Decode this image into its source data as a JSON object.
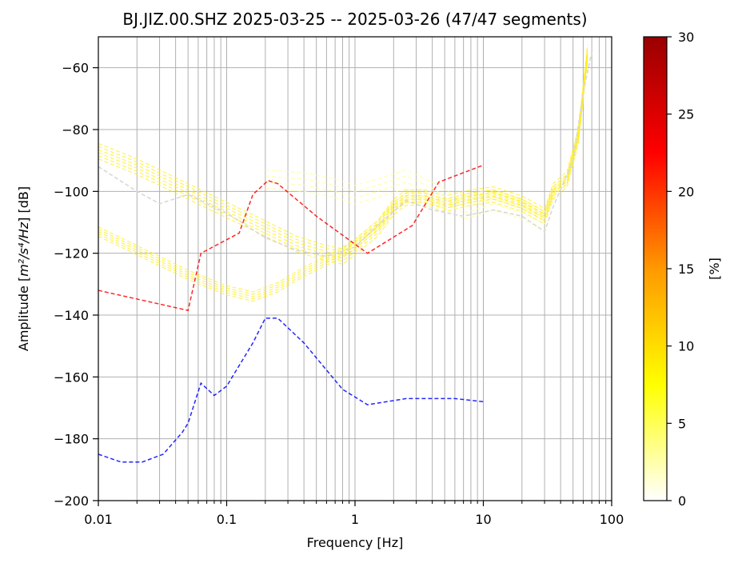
{
  "chart_data": {
    "type": "line",
    "title": "BJ.JIZ.00.SHZ   2025-03-25 -- 2025-03-26  (47/47 segments)",
    "xlabel": "Frequency [Hz]",
    "ylabel_main": "Amplitude [",
    "ylabel_units": "m²/s⁴/Hz",
    "ylabel_suffix": "] [dB]",
    "xscale": "log",
    "xlim": [
      0.01,
      100
    ],
    "ylim": [
      -200,
      -50
    ],
    "grid": true,
    "x_ticks": [
      {
        "value": 0.01,
        "label": "0.01"
      },
      {
        "value": 0.1,
        "label": "0.1"
      },
      {
        "value": 1,
        "label": "1"
      },
      {
        "value": 10,
        "label": "10"
      },
      {
        "value": 100,
        "label": "100"
      }
    ],
    "y_ticks": [
      {
        "value": -200,
        "label": "−200"
      },
      {
        "value": -180,
        "label": "−180"
      },
      {
        "value": -160,
        "label": "−160"
      },
      {
        "value": -140,
        "label": "−140"
      },
      {
        "value": -120,
        "label": "−120"
      },
      {
        "value": -100,
        "label": "−100"
      },
      {
        "value": -80,
        "label": "−80"
      },
      {
        "value": -60,
        "label": "−60"
      }
    ],
    "colorbar": {
      "label": "[%]",
      "range": [
        0,
        30
      ],
      "colors": [
        "#ffffff",
        "#ffff00",
        "#ff9900",
        "#ff0000",
        "#990000"
      ],
      "ticks": [
        {
          "value": 0,
          "label": "0"
        },
        {
          "value": 5,
          "label": "5"
        },
        {
          "value": 10,
          "label": "10"
        },
        {
          "value": 15,
          "label": "15"
        },
        {
          "value": 20,
          "label": "20"
        },
        {
          "value": 25,
          "label": "25"
        },
        {
          "value": 30,
          "label": "30"
        }
      ]
    },
    "reference_lines": [
      {
        "role": "high-noise-model",
        "color": "#ff0000",
        "x": [
          0.01,
          0.05,
          0.063,
          0.125,
          0.16,
          0.21,
          0.25,
          0.5,
          1.25,
          2.8,
          4.5,
          10
        ],
        "y": [
          -132,
          -138.5,
          -120,
          -113.5,
          -101,
          -96.5,
          -97.5,
          -108,
          -120,
          -111,
          -97,
          -91.5
        ]
      },
      {
        "role": "low-noise-model",
        "color": "#0000ff",
        "x": [
          0.01,
          0.015,
          0.022,
          0.032,
          0.045,
          0.05,
          0.063,
          0.08,
          0.1,
          0.16,
          0.2,
          0.25,
          0.4,
          0.8,
          1.25,
          2.5,
          6,
          10
        ],
        "y": [
          -185,
          -187.5,
          -187.5,
          -185,
          -178,
          -175,
          -162,
          -166,
          -163,
          -149,
          -141,
          -141,
          -149,
          -164,
          -169,
          -167,
          -167,
          -168
        ]
      }
    ],
    "psd_curves": [
      {
        "color": "#ffee22",
        "spread": 1.5,
        "count": 5,
        "x": [
          0.01,
          0.02,
          0.05,
          0.1,
          0.16,
          0.25,
          0.4,
          0.7,
          1,
          1.5,
          2,
          2.5,
          3.5,
          5,
          8,
          12,
          20,
          30,
          35,
          45,
          55,
          65
        ],
        "y": [
          -113,
          -119,
          -127,
          -132,
          -134,
          -131,
          -126,
          -121,
          -117,
          -111,
          -105,
          -102,
          -102,
          -104,
          -102,
          -101,
          -104,
          -108,
          -100,
          -96,
          -82,
          -55
        ]
      },
      {
        "color": "#ffee22",
        "spread": 2.5,
        "count": 6,
        "x": [
          0.01,
          0.02,
          0.05,
          0.1,
          0.2,
          0.35,
          0.6,
          0.8,
          1,
          1.5,
          2,
          2.5,
          3.5,
          5,
          8,
          12,
          20,
          30,
          35,
          45,
          55,
          65
        ],
        "y": [
          -87,
          -92,
          -100,
          -106,
          -112,
          -117,
          -120,
          -121,
          -118,
          -112,
          -105,
          -102,
          -102,
          -104,
          -102,
          -101,
          -104,
          -108,
          -100,
          -96,
          -82,
          -55
        ]
      },
      {
        "color": "#ffff99",
        "spread": 3,
        "count": 4,
        "x": [
          0.2,
          0.4,
          0.7,
          1,
          1.5,
          2.5,
          4,
          7,
          12,
          20,
          32
        ],
        "y": [
          -96,
          -97,
          -99,
          -101,
          -99,
          -96,
          -100,
          -106,
          -103,
          -106,
          -110
        ]
      },
      {
        "color": "#d8d8d8",
        "spread": 0,
        "count": 1,
        "x": [
          0.01,
          0.02,
          0.03,
          0.05,
          0.1,
          0.2,
          0.35,
          0.6,
          1,
          1.5,
          2.5,
          4,
          7,
          12,
          20,
          30,
          35,
          50,
          60,
          70
        ],
        "y": [
          -92,
          -100,
          -104,
          -101,
          -107,
          -115,
          -119,
          -121,
          -118,
          -111,
          -103,
          -106,
          -108,
          -106,
          -108,
          -113,
          -105,
          -90,
          -68,
          -55
        ]
      }
    ]
  }
}
